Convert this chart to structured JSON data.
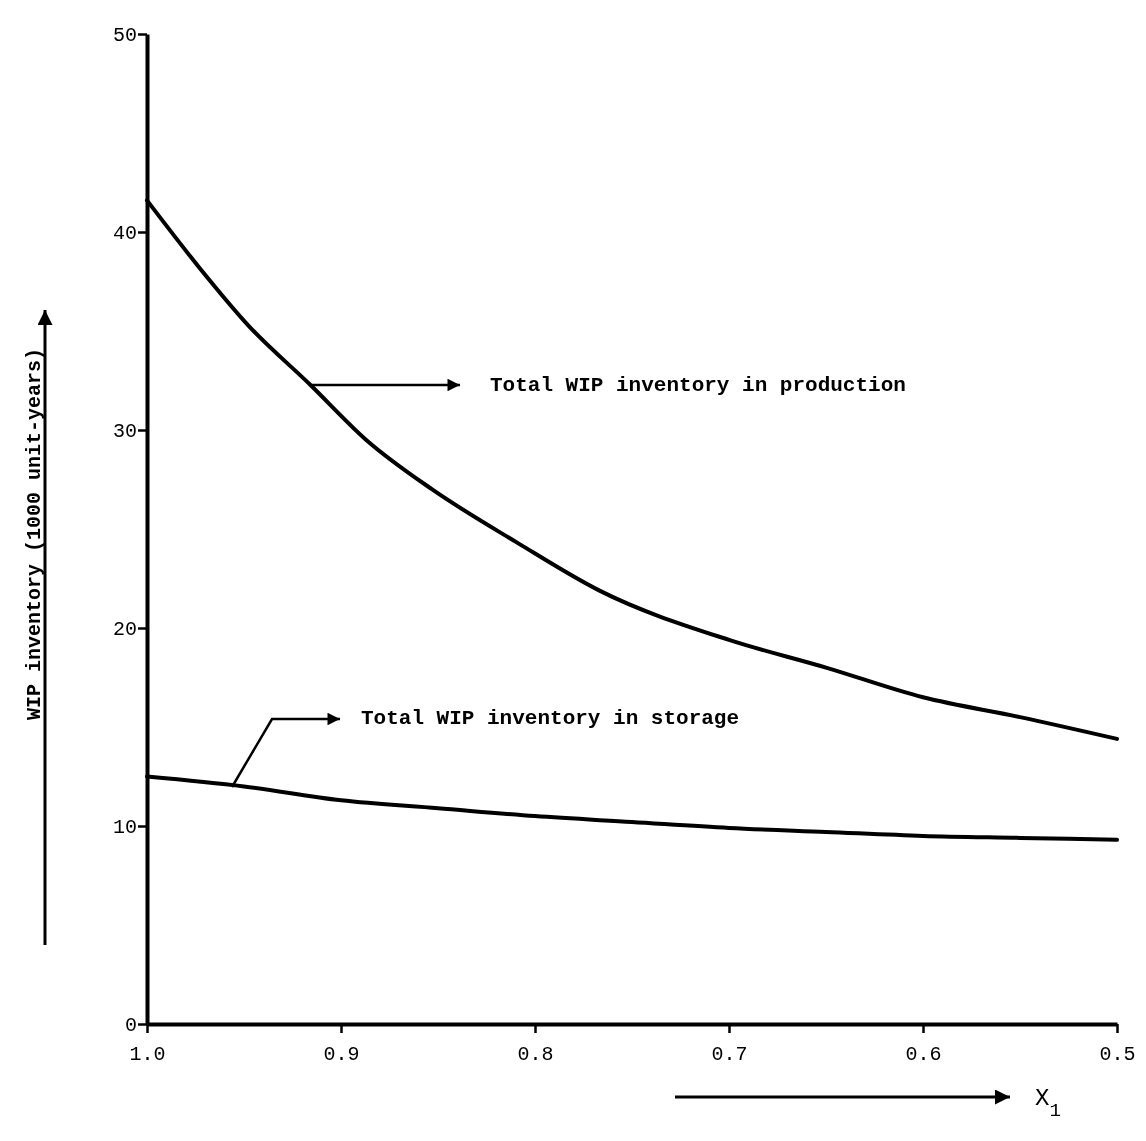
{
  "chart_data": {
    "type": "line",
    "xlabel": "X$_{1}$",
    "ylabel": "WIP inventory (1000 unit-years)",
    "xlim": [
      1.0,
      0.5
    ],
    "xticks": [
      {
        "value": 1.0,
        "label": "1.0"
      },
      0.9,
      0.8,
      0.7,
      0.6,
      0.5
    ],
    "ylim": [
      0,
      50
    ],
    "yticks": [
      0,
      10,
      20,
      30,
      40,
      50
    ],
    "grid": false,
    "marker": "none",
    "line_style": "solid",
    "series": [
      {
        "color": "#000000",
        "x": [
          1.0,
          0.973,
          0.947,
          0.916,
          0.887,
          0.853,
          0.809,
          0.767,
          0.7,
          0.65,
          0.6,
          0.55,
          0.5
        ],
        "values": [
          41.6,
          38.2,
          35.2,
          32.3,
          29.5,
          27.0,
          24.3,
          21.9,
          19.4,
          18.0,
          16.5,
          15.5,
          14.4
        ]
      },
      {
        "color": "#000000",
        "x": [
          1.0,
          0.95,
          0.9,
          0.85,
          0.8,
          0.75,
          0.7,
          0.65,
          0.6,
          0.55,
          0.5
        ],
        "values": [
          12.5,
          12.0,
          11.3,
          10.9,
          10.5,
          10.2,
          9.9,
          9.7,
          9.5,
          9.4,
          9.3
        ]
      }
    ],
    "annotations": [
      "Total WIP inventory in production",
      "Total WIP inventory in storage"
    ]
  }
}
